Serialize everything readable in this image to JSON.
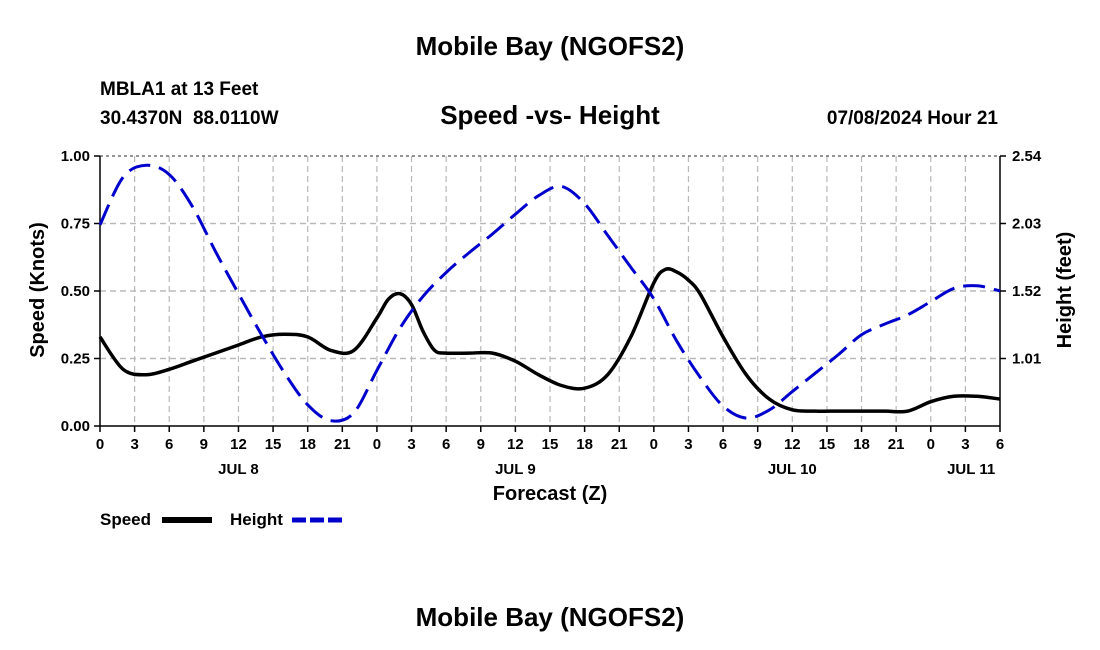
{
  "chart_data": {
    "type": "line",
    "title": "Mobile Bay (NGOFS2)",
    "footer_title": "Mobile Bay (NGOFS2)",
    "subtitle": "Speed -vs- Height",
    "station": "MBLA1 at 13 Feet",
    "coordinates": "30.4370N  88.0110W",
    "datetime": "07/08/2024 Hour 21",
    "xlabel": "Forecast (Z)",
    "ylabel_left": "Speed (Knots)",
    "ylabel_right": "Height (feet)",
    "x_range_hours": [
      0,
      78
    ],
    "x_tick_hours": [
      0,
      3,
      6,
      9,
      12,
      15,
      18,
      21,
      24,
      27,
      30,
      33,
      36,
      39,
      42,
      45,
      48,
      51,
      54,
      57,
      60,
      63,
      66,
      69,
      72,
      75,
      78
    ],
    "x_tick_labels": [
      "0",
      "3",
      "6",
      "9",
      "12",
      "15",
      "18",
      "21",
      "0",
      "3",
      "6",
      "9",
      "12",
      "15",
      "18",
      "21",
      "0",
      "3",
      "6",
      "9",
      "12",
      "15",
      "18",
      "21",
      "0",
      "3",
      "6"
    ],
    "date_labels": [
      {
        "label": "JUL 8",
        "hour": 12
      },
      {
        "label": "JUL 9",
        "hour": 36
      },
      {
        "label": "JUL 10",
        "hour": 60
      },
      {
        "label": "JUL 11",
        "hour": 75.5
      }
    ],
    "y_left_range": [
      0,
      1
    ],
    "y_left_ticks": [
      0.0,
      0.25,
      0.5,
      0.75,
      1.0
    ],
    "y_left_tick_labels": [
      "0.00",
      "0.25",
      "0.50",
      "0.75",
      "1.00"
    ],
    "y_right_range": [
      0.5,
      2.54
    ],
    "y_right_ticks": [
      1.01,
      1.52,
      2.03,
      2.54
    ],
    "y_right_tick_labels": [
      "1.01",
      "1.52",
      "2.03",
      "2.54"
    ],
    "grid": true,
    "legend_position": "bottom-left",
    "series": [
      {
        "name": "Speed",
        "axis": "left",
        "color": "#000000",
        "style": "solid",
        "x": [
          0,
          2,
          4,
          6,
          8,
          10,
          12,
          14,
          16,
          18,
          20,
          22,
          24,
          25,
          26,
          27,
          28,
          29,
          30,
          32,
          34,
          36,
          38,
          40,
          42,
          44,
          46,
          48,
          49,
          50,
          51,
          52,
          54,
          56,
          58,
          60,
          62,
          64,
          66,
          68,
          70,
          72,
          74,
          76,
          78
        ],
        "values": [
          0.33,
          0.21,
          0.19,
          0.21,
          0.24,
          0.27,
          0.3,
          0.33,
          0.34,
          0.33,
          0.28,
          0.28,
          0.4,
          0.47,
          0.49,
          0.45,
          0.35,
          0.28,
          0.27,
          0.27,
          0.27,
          0.24,
          0.19,
          0.15,
          0.14,
          0.19,
          0.33,
          0.53,
          0.58,
          0.57,
          0.54,
          0.49,
          0.33,
          0.19,
          0.1,
          0.06,
          0.055,
          0.055,
          0.055,
          0.055,
          0.055,
          0.09,
          0.11,
          0.11,
          0.1
        ]
      },
      {
        "name": "Height",
        "axis": "right",
        "color": "#0000cc",
        "style": "dashed",
        "x": [
          0,
          2,
          4,
          6,
          8,
          10,
          12,
          14,
          16,
          18,
          20,
          22,
          24,
          26,
          28,
          30,
          32,
          34,
          36,
          38,
          40,
          42,
          44,
          46,
          48,
          50,
          52,
          54,
          56,
          58,
          60,
          62,
          64,
          66,
          68,
          70,
          72,
          74,
          76,
          78
        ],
        "values": [
          2.02,
          2.38,
          2.47,
          2.4,
          2.16,
          1.82,
          1.5,
          1.19,
          0.9,
          0.66,
          0.54,
          0.6,
          0.92,
          1.24,
          1.48,
          1.66,
          1.81,
          1.95,
          2.1,
          2.24,
          2.31,
          2.18,
          1.94,
          1.7,
          1.46,
          1.14,
          0.87,
          0.65,
          0.56,
          0.62,
          0.76,
          0.9,
          1.04,
          1.19,
          1.27,
          1.34,
          1.44,
          1.54,
          1.56,
          1.52
        ]
      }
    ]
  }
}
